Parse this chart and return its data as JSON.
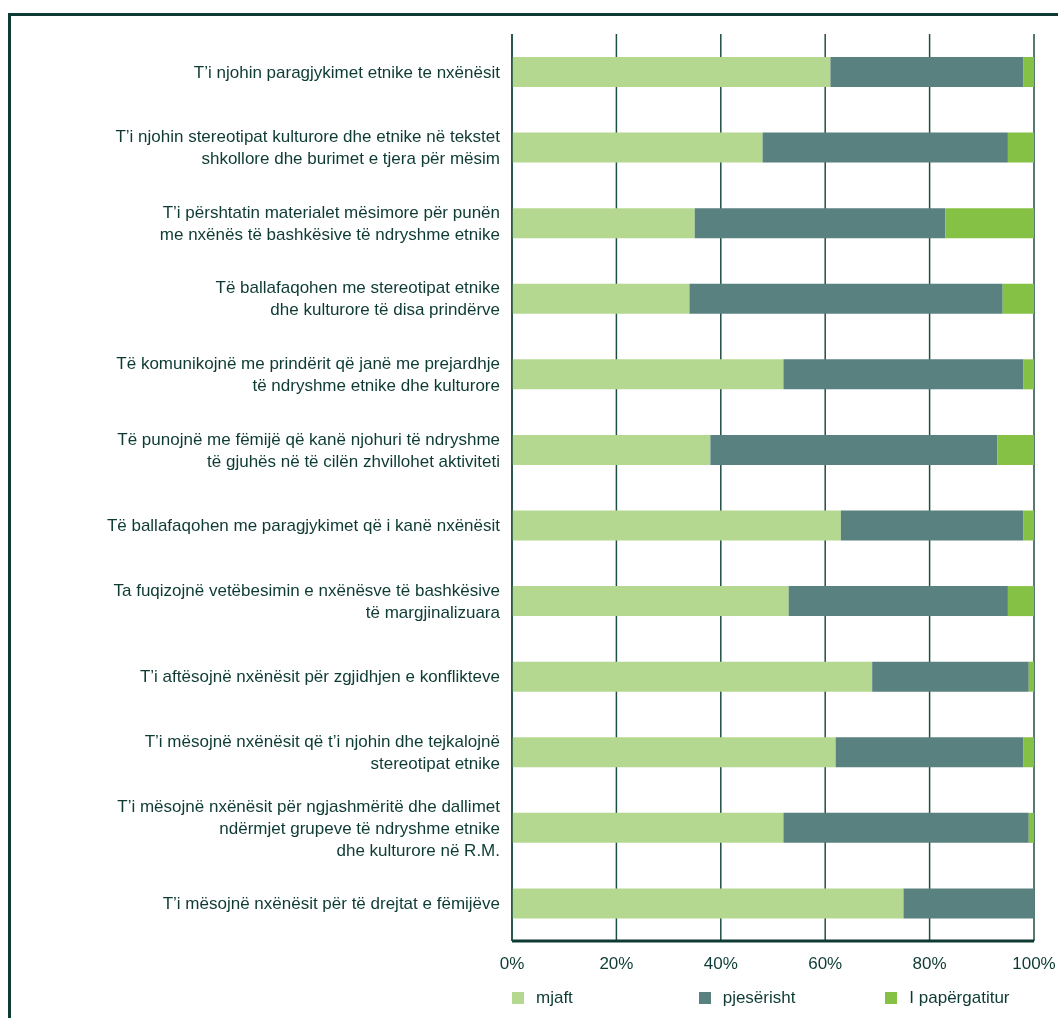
{
  "chart_data": {
    "type": "bar",
    "orientation": "horizontal",
    "stacked": true,
    "categories": [
      "T’i njohin  paragjykimet etnike te nxënësit",
      "T’i njohin stereotipat kulturore dhe etnike në tekstet\nshkollore dhe burimet e tjera për mësim",
      "T’i përshtatin materialet mësimore për punën\nme nxënës të bashkësive të ndryshme etnike",
      "Të ballafaqohen me stereotipat etnike\ndhe kulturore të disa prindërve",
      "Të komunikojnë me prindërit që janë me prejardhje\ntë ndryshme etnike dhe kulturore",
      "Të punojnë me fëmijë që kanë njohuri të ndryshme\ntë gjuhës në të cilën zhvillohet aktiviteti",
      "Të ballafaqohen me paragjykimet që i kanë nxënësit",
      "Ta fuqizojnë vetëbesimin e nxënësve të bashkësive\ntë margjinalizuara",
      "T’i aftësojnë nxënësit për zgjidhjen e konflikteve",
      "T’i mësojnë nxënësit që t’i njohin dhe tejkalojnë\nstereotipat etnike",
      "T’i mësojnë nxënësit për ngjashmëritë dhe dallimet\nndërmjet grupeve të ndryshme etnike\ndhe kulturore në R.M.",
      "T’i mësojnë nxënësit për të drejtat e fëmijëve"
    ],
    "series": [
      {
        "name": "mjaft",
        "color": "#b5d891",
        "values": [
          61,
          48,
          35,
          34,
          52,
          38,
          63,
          53,
          69,
          62,
          52,
          75
        ]
      },
      {
        "name": "pjesërisht",
        "color": "#58817f",
        "values": [
          37,
          47,
          48,
          60,
          46,
          55,
          35,
          42,
          30,
          36,
          47,
          25
        ]
      },
      {
        "name": "I papërgatitur",
        "color": "#84c144",
        "values": [
          2,
          5,
          17,
          6,
          2,
          7,
          2,
          5,
          1,
          2,
          1,
          0
        ]
      }
    ],
    "xlim": [
      0,
      100
    ],
    "xticks": [
      {
        "value": 0,
        "label": "0%"
      },
      {
        "value": 20,
        "label": "20%"
      },
      {
        "value": 40,
        "label": "40%"
      },
      {
        "value": 60,
        "label": "60%"
      },
      {
        "value": 80,
        "label": "80%"
      },
      {
        "value": 100,
        "label": "100%"
      }
    ],
    "grid": "x",
    "legend": "bottom"
  }
}
